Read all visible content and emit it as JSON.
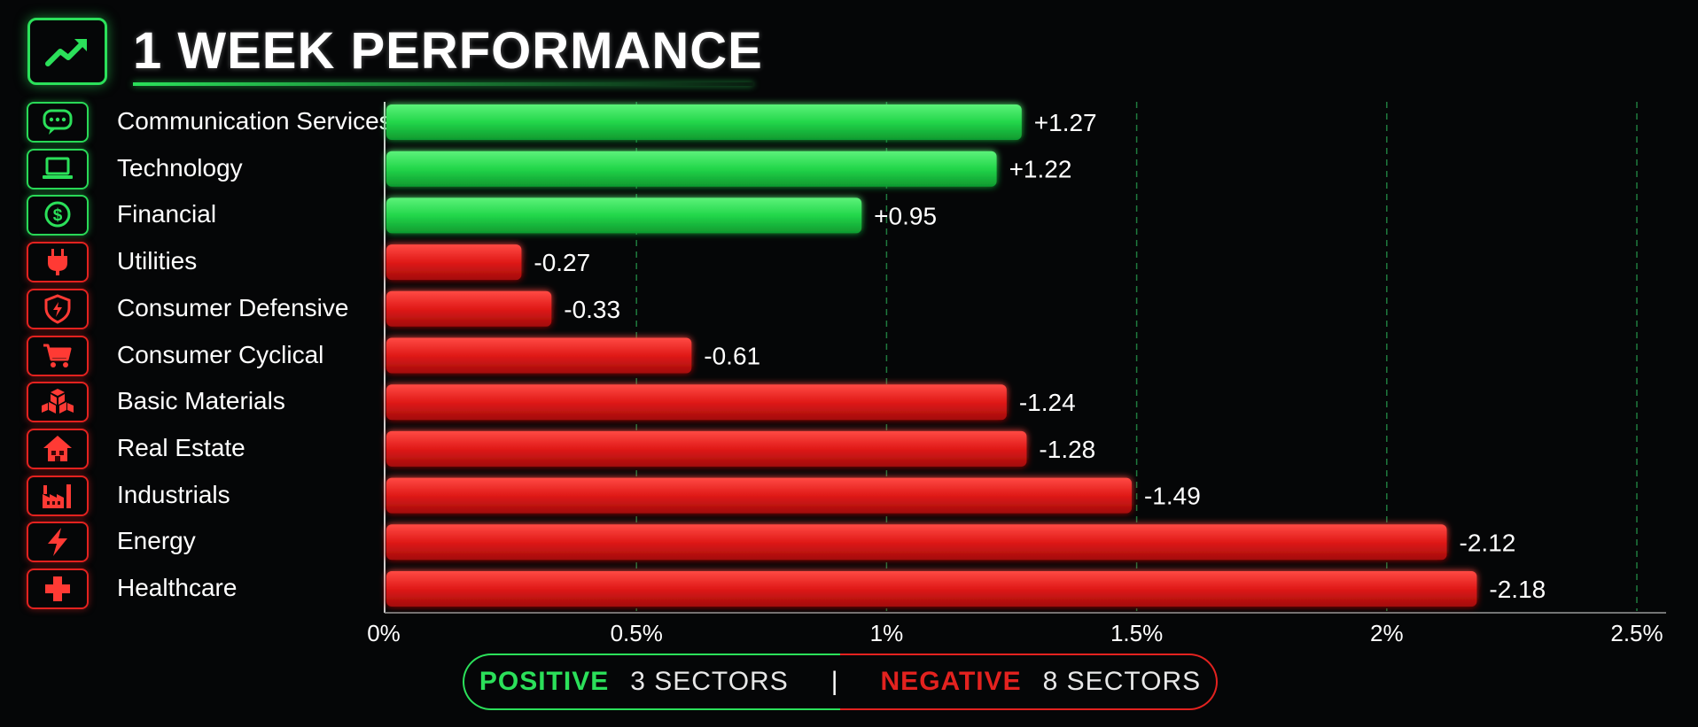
{
  "header": {
    "title": "1 WEEK PERFORMANCE",
    "icon": "trending-up-icon",
    "accent_color": "#2be05a"
  },
  "chart_data": {
    "type": "bar",
    "orientation": "horizontal",
    "x_tick_labels": [
      "0%",
      "0.5%",
      "1%",
      "1.5%",
      "2%",
      "2.5%"
    ],
    "xlim": [
      0,
      2.5
    ],
    "grid": "vertical dashed",
    "categories": [
      "Communication Services",
      "Technology",
      "Financial",
      "Utilities",
      "Consumer Defensive",
      "Consumer Cyclical",
      "Basic Materials",
      "Real Estate",
      "Industrials",
      "Energy",
      "Healthcare"
    ],
    "values": [
      1.27,
      1.22,
      0.95,
      -0.27,
      -0.33,
      -0.61,
      -1.24,
      -1.28,
      -1.49,
      -2.12,
      -2.18
    ],
    "data_labels": [
      "+1.27",
      "+1.22",
      "+0.95",
      "-0.27",
      "-0.33",
      "-0.61",
      "-1.24",
      "-1.28",
      "-1.49",
      "-2.12",
      "-2.18"
    ],
    "icons": [
      "chat-bubble-icon",
      "laptop-icon",
      "dollar-coin-icon",
      "power-plug-icon",
      "shield-icon",
      "shopping-cart-icon",
      "boxes-icon",
      "house-icon",
      "factory-icon",
      "lightning-icon",
      "medical-cross-icon"
    ],
    "colors": {
      "positive": "#22d64a",
      "negative": "#e01a18"
    }
  },
  "legend": {
    "positive_label": "POSITIVE",
    "positive_count": "3 SECTORS",
    "separator": "|",
    "negative_label": "NEGATIVE",
    "negative_count": "8 SECTORS"
  }
}
